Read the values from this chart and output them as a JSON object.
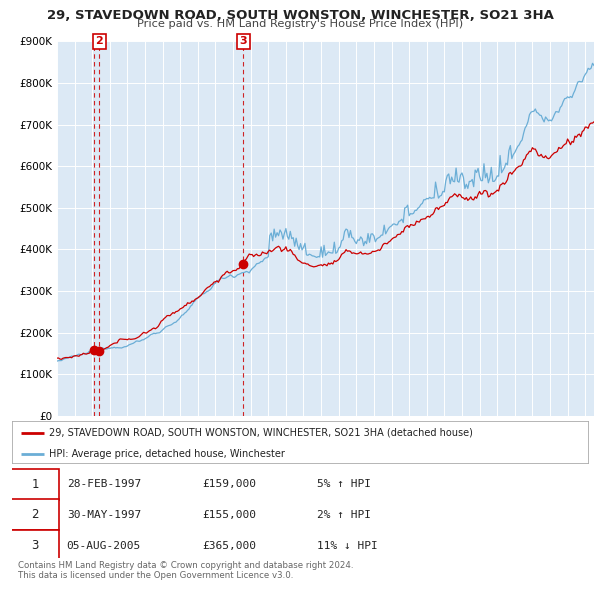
{
  "title": "29, STAVEDOWN ROAD, SOUTH WONSTON, WINCHESTER, SO21 3HA",
  "subtitle": "Price paid vs. HM Land Registry's House Price Index (HPI)",
  "sale_line_color": "#cc0000",
  "hpi_line_color": "#6baed6",
  "plot_bg_color": "#dce9f5",
  "sale_label": "29, STAVEDOWN ROAD, SOUTH WONSTON, WINCHESTER, SO21 3HA (detached house)",
  "hpi_label": "HPI: Average price, detached house, Winchester",
  "transactions": [
    {
      "num": 1,
      "date": "28-FEB-1997",
      "price": 159000,
      "pct": "5%",
      "dir": "↑",
      "year": 1997.12
    },
    {
      "num": 2,
      "date": "30-MAY-1997",
      "price": 155000,
      "pct": "2%",
      "dir": "↑",
      "year": 1997.41
    },
    {
      "num": 3,
      "date": "05-AUG-2005",
      "price": 365000,
      "pct": "11%",
      "dir": "↓",
      "year": 2005.59
    }
  ],
  "ylim": [
    0,
    900000
  ],
  "xlim_start": 1995.0,
  "xlim_end": 2025.5,
  "yticks": [
    0,
    100000,
    200000,
    300000,
    400000,
    500000,
    600000,
    700000,
    800000,
    900000
  ],
  "ytick_labels": [
    "£0",
    "£100K",
    "£200K",
    "£300K",
    "£400K",
    "£500K",
    "£600K",
    "£700K",
    "£800K",
    "£900K"
  ],
  "footer": "Contains HM Land Registry data © Crown copyright and database right 2024.\nThis data is licensed under the Open Government Licence v3.0.",
  "table_rows": [
    [
      "1",
      "28-FEB-1997",
      "£159,000",
      "5% ↑ HPI"
    ],
    [
      "2",
      "30-MAY-1997",
      "£155,000",
      "2% ↑ HPI"
    ],
    [
      "3",
      "05-AUG-2005",
      "£365,000",
      "11% ↓ HPI"
    ]
  ]
}
